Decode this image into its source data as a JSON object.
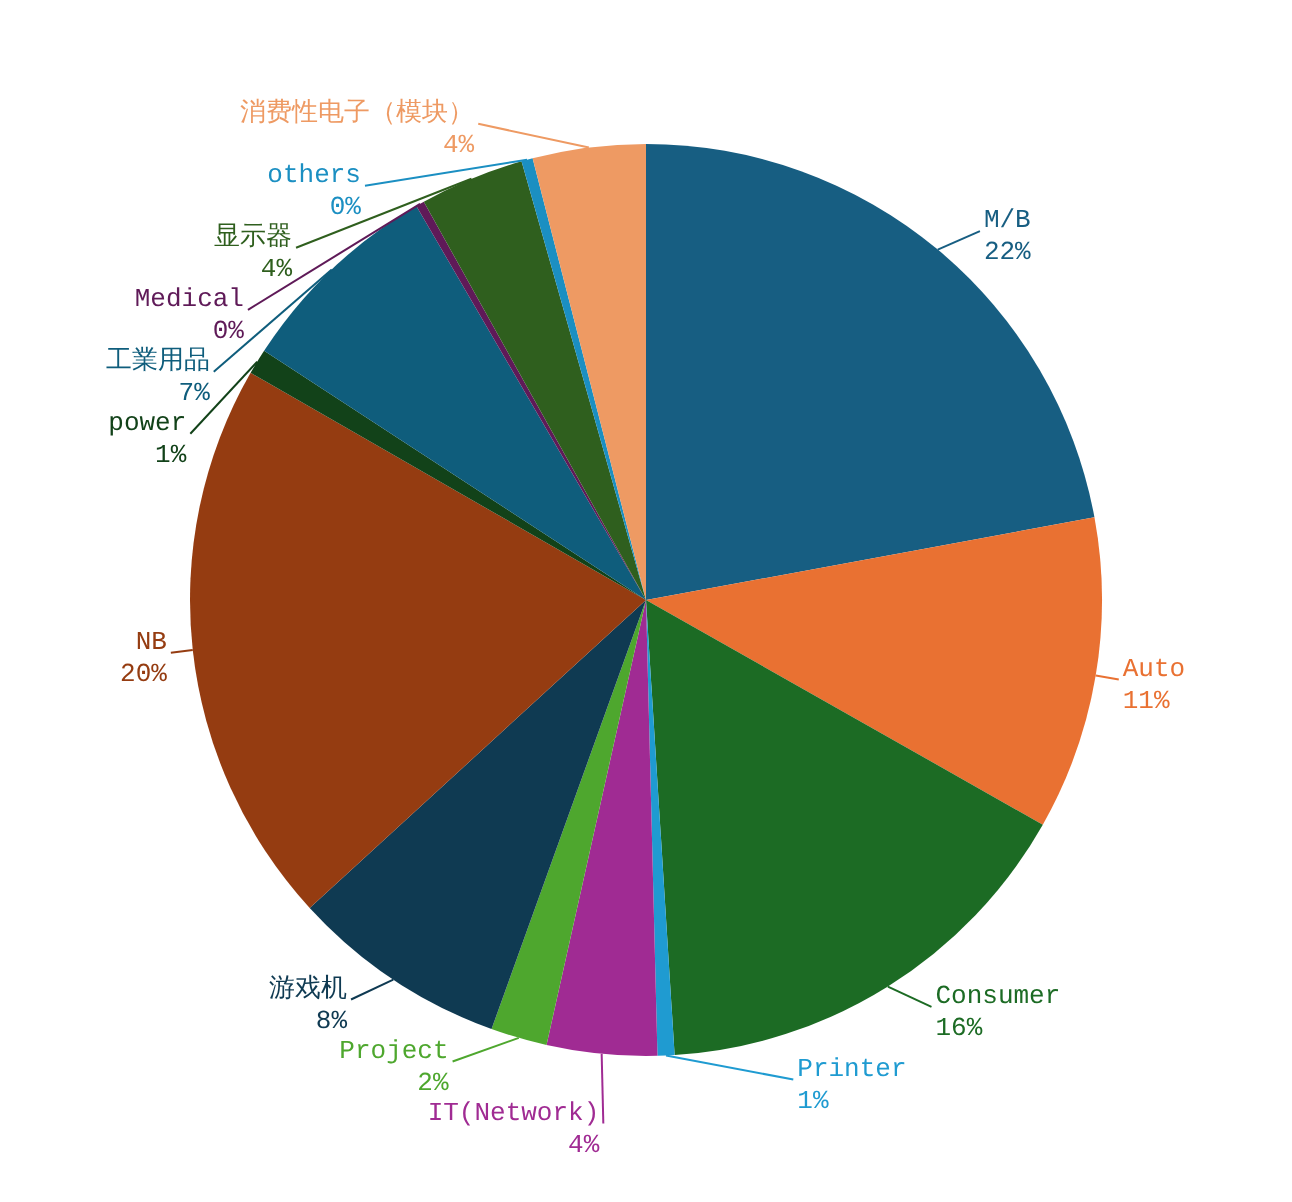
{
  "chart_data": {
    "type": "pie",
    "categories": [
      "M/B",
      "Auto",
      "Consumer",
      "Printer",
      "IT(Network)",
      "Project",
      "游戏机",
      "NB",
      "power",
      "工業用品",
      "Medical",
      "显示器",
      "others",
      "消费性电子（模块）"
    ],
    "values": [
      22.1,
      11.1,
      15.8,
      0.6,
      3.9,
      2.0,
      7.7,
      20.1,
      0.9,
      7.4,
      0.3,
      3.7,
      0.4,
      4.0
    ],
    "value_labels": [
      "22%",
      "11%",
      "16%",
      "1%",
      "4%",
      "2%",
      "8%",
      "20%",
      "1%",
      "7%",
      "0%",
      "4%",
      "0%",
      "4%"
    ],
    "colors": [
      "#175e82",
      "#e97132",
      "#1c6b24",
      "#1f9bd1",
      "#a02b93",
      "#4ea72e",
      "#0f3a52",
      "#953c11",
      "#124219",
      "#0f5d7c",
      "#5f1a58",
      "#2f5f1e",
      "#1b8fc2",
      "#ee9a63"
    ]
  }
}
